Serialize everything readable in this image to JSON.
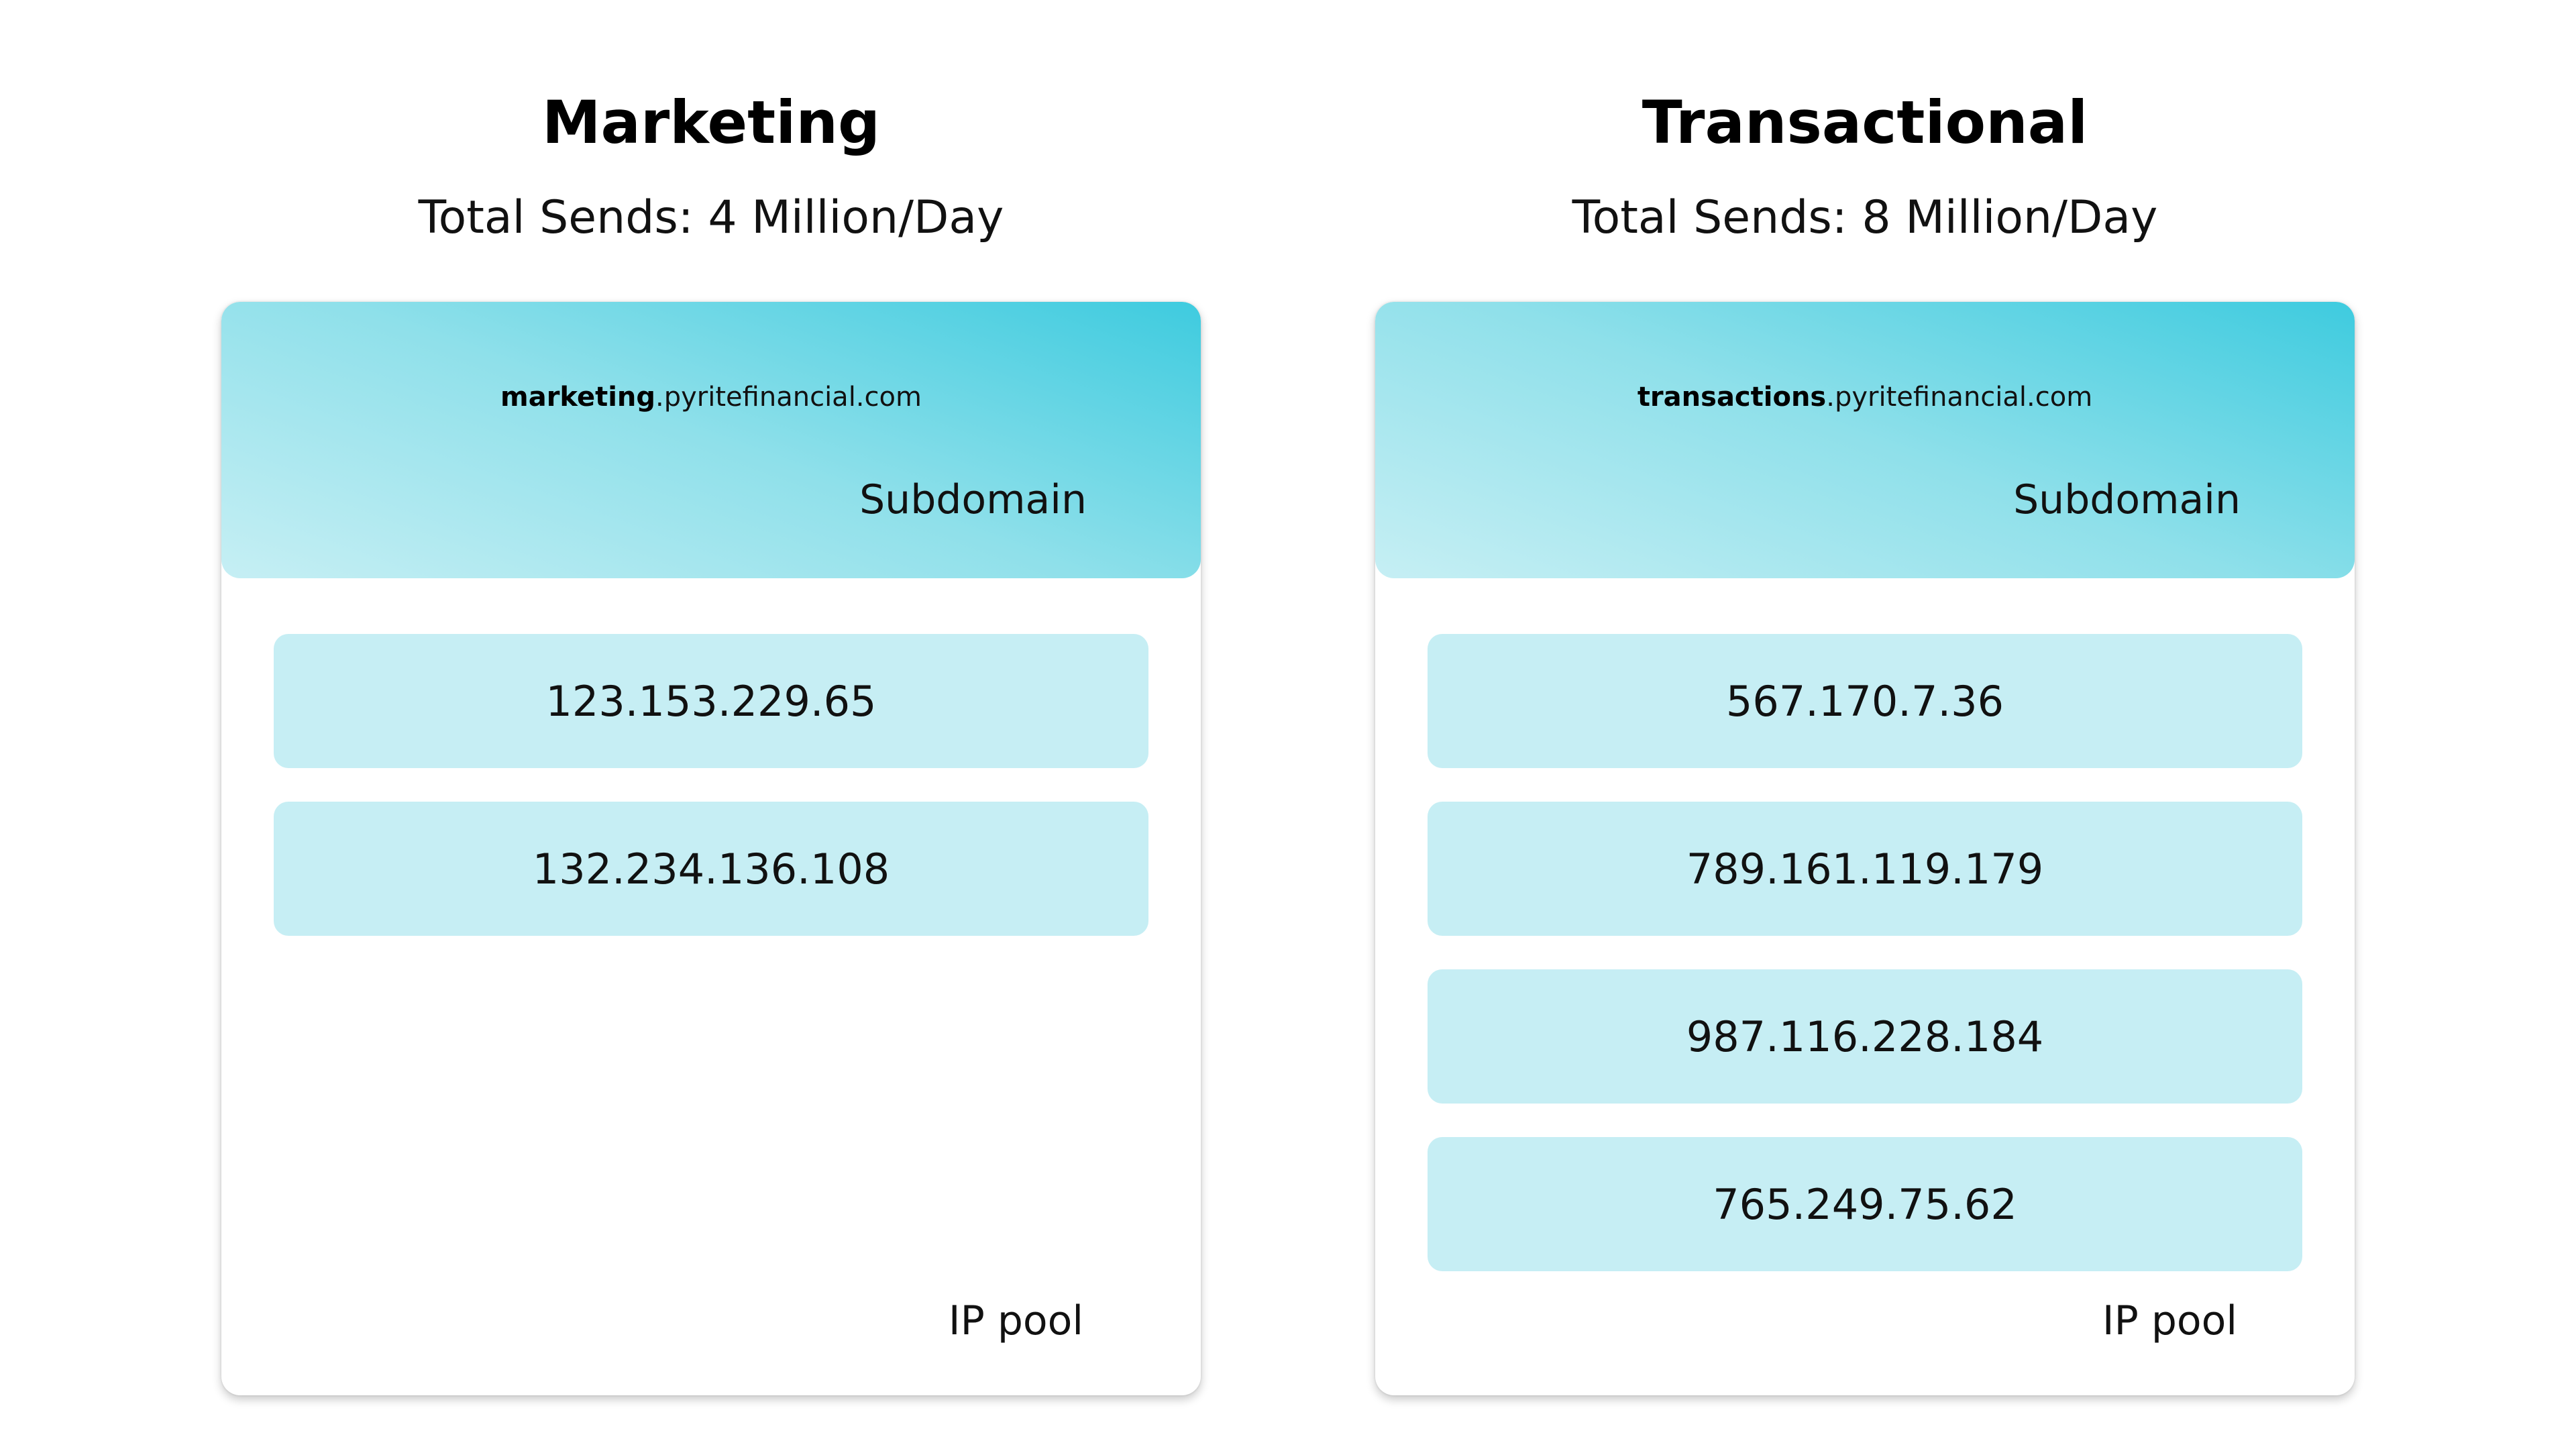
{
  "panels": [
    {
      "title": "Marketing",
      "sends": "Total Sends: 4 Million/Day",
      "domain_bold": "marketing",
      "domain_rest": ".pyritefinancial.com",
      "subdomain_label": "Subdomain",
      "ips": [
        "123.153.229.65",
        "132.234.136.108"
      ],
      "pool_label": "IP pool"
    },
    {
      "title": "Transactional",
      "sends": "Total Sends: 8 Million/Day",
      "domain_bold": "transactions",
      "domain_rest": ".pyritefinancial.com",
      "subdomain_label": "Subdomain",
      "ips": [
        "567.170.7.36",
        "789.161.119.179",
        "987.116.228.184",
        "765.249.75.62"
      ],
      "pool_label": "IP pool"
    }
  ],
  "colors": {
    "header_gradient_start": "#3ecbdf",
    "header_gradient_end": "#c6eff4",
    "ip_row_fill": "#c6eef4"
  }
}
